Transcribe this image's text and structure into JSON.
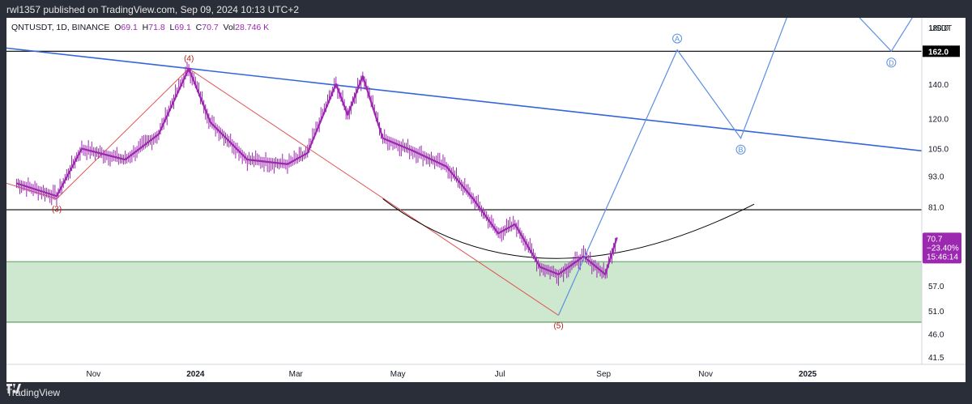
{
  "header": {
    "published": "rwl1357 published on TradingView.com, Sep 09, 2024 10:13 UTC+2"
  },
  "legend": {
    "symbol": "QNTUSDT, 1D, BINANCE",
    "open_label": "O",
    "open": "69.1",
    "high_label": "H",
    "high": "71.8",
    "low_label": "L",
    "low": "69.1",
    "close_label": "C",
    "close": "70.7",
    "vol_label": "Vol",
    "vol": "28.746 K"
  },
  "footer": {
    "brand": "TradingView"
  },
  "price_scale": {
    "currency": "USDT"
  },
  "price_tag": {
    "price": "70.7",
    "change": "−23.40%",
    "countdown": "15:46:14"
  },
  "level_tag": "162.0",
  "wave_labels": [
    "(3)",
    "(4)",
    "(5)"
  ],
  "abc_labels": [
    "A",
    "B",
    "D"
  ],
  "colors": {
    "candle": "#9c27b0",
    "trendline": "#3465d9",
    "wave_line": "#e05555",
    "projection": "#5b8fe0",
    "zone_fill": "#c8e6c9",
    "background": "#ffffff",
    "frame": "#2a2e39"
  },
  "chart_data": {
    "type": "line",
    "scale": "log",
    "x_ticks": [
      "Nov",
      "2024",
      "Mar",
      "May",
      "Jul",
      "Sep",
      "Nov",
      "2025"
    ],
    "y_ticks": [
      180.0,
      140.0,
      120.0,
      105.0,
      93.0,
      81.0,
      69.0,
      57.0,
      51.0,
      46.0,
      41.5
    ],
    "y_tick_labels": [
      "180.0",
      "140.0",
      "120.0",
      "105.0",
      "93.0",
      "81.0",
      "69.0",
      "57.0",
      "51.0",
      "46.0",
      "41.5"
    ],
    "ylim": [
      41.5,
      180.0
    ],
    "horizontal_levels": [
      162.0,
      80.0,
      63.5,
      48.5
    ],
    "support_zone": [
      48.5,
      63.5
    ],
    "price_path": [
      {
        "x": "2023-09-16",
        "y": 90
      },
      {
        "x": "2023-10-10",
        "y": 85
      },
      {
        "x": "2023-10-25",
        "y": 105
      },
      {
        "x": "2023-11-20",
        "y": 100
      },
      {
        "x": "2023-12-10",
        "y": 112
      },
      {
        "x": "2023-12-28",
        "y": 150
      },
      {
        "x": "2024-01-10",
        "y": 118
      },
      {
        "x": "2024-02-01",
        "y": 100
      },
      {
        "x": "2024-02-25",
        "y": 98
      },
      {
        "x": "2024-03-08",
        "y": 103
      },
      {
        "x": "2024-03-25",
        "y": 140
      },
      {
        "x": "2024-04-01",
        "y": 122
      },
      {
        "x": "2024-04-10",
        "y": 145
      },
      {
        "x": "2024-04-22",
        "y": 110
      },
      {
        "x": "2024-05-10",
        "y": 104
      },
      {
        "x": "2024-05-30",
        "y": 97
      },
      {
        "x": "2024-06-15",
        "y": 84
      },
      {
        "x": "2024-06-30",
        "y": 72
      },
      {
        "x": "2024-07-10",
        "y": 75
      },
      {
        "x": "2024-07-25",
        "y": 62
      },
      {
        "x": "2024-08-05",
        "y": 60
      },
      {
        "x": "2024-08-20",
        "y": 65
      },
      {
        "x": "2024-09-02",
        "y": 60
      },
      {
        "x": "2024-09-09",
        "y": 70.7
      }
    ],
    "wave_points": [
      {
        "label": "(3)",
        "x": "2023-10-10",
        "y": 84
      },
      {
        "label": "(4)",
        "x": "2023-12-28",
        "y": 150
      },
      {
        "label": "(5)",
        "x": "2024-08-05",
        "y": 50
      }
    ],
    "projection_path": [
      {
        "label": "",
        "x": "2024-08-05",
        "y": 50
      },
      {
        "label": "A",
        "x": "2024-10-15",
        "y": 163
      },
      {
        "label": "B",
        "x": "2024-11-22",
        "y": 110
      },
      {
        "label": "",
        "x": "2025-01-01",
        "y": 240
      },
      {
        "label": "D",
        "x": "2025-02-20",
        "y": 162
      },
      {
        "label": "",
        "x": "2025-03-25",
        "y": 240
      }
    ]
  }
}
